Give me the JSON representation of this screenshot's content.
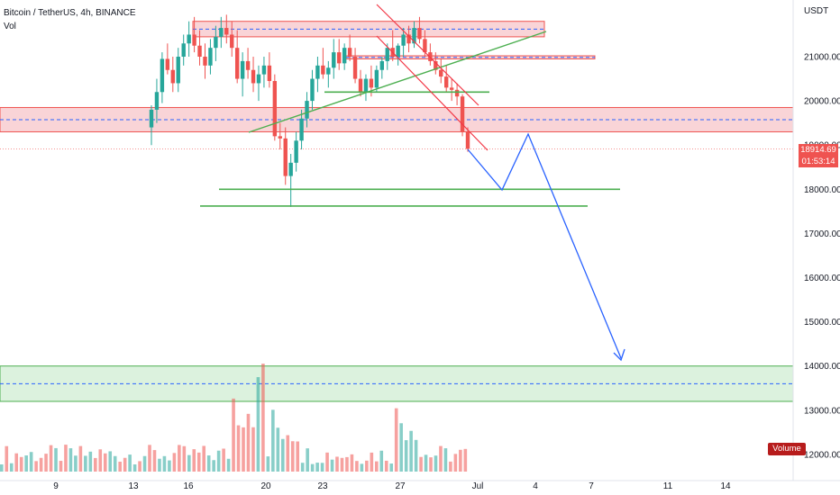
{
  "header": {
    "symbol_line": "Bitcoin / TetherUS, 4h, BINANCE",
    "volume_label": "Vol"
  },
  "price_tag": {
    "price": "18914.69",
    "countdown": "01:53:14"
  },
  "volume_badge": "Volume",
  "colors": {
    "up": "#26a69a",
    "down": "#ef5350",
    "zone_red_fill": "#f7c5c9",
    "zone_green_fill": "#d6f0d8",
    "trend_green": "#4caf50",
    "trend_red": "#f23645",
    "projection_blue": "#2962ff",
    "dashed_blue": "#2962ff"
  },
  "chart_data": {
    "type": "candlestick",
    "y_axis": {
      "unit": "USDT",
      "ticks": [
        "21000.00",
        "20000.00",
        "19000.00",
        "18000.00",
        "17000.00",
        "16000.00",
        "15000.00",
        "14000.00",
        "13000.00",
        "12000.00"
      ],
      "tick_values": [
        21000,
        20000,
        19000,
        18000,
        17000,
        16000,
        15000,
        14000,
        13000,
        12000
      ]
    },
    "x_axis": {
      "ticks": [
        "9",
        "13",
        "16",
        "20",
        "23",
        "27",
        "Jul",
        "4",
        "7",
        "11",
        "14"
      ]
    },
    "last_price": 18914.69,
    "zones": [
      {
        "kind": "resistance",
        "y_low": 21450,
        "y_high": 21800,
        "x_start": "15",
        "x_end": "3"
      },
      {
        "kind": "resistance",
        "y_low": 21920,
        "y_high": 21000,
        "x_start": "22.5",
        "x_end": "Jul 5.5"
      },
      {
        "kind": "resistance",
        "y_low": 19300,
        "y_high": 19850,
        "x_start": "6",
        "x_end": "16"
      },
      {
        "kind": "target",
        "y_low": 13200,
        "y_high": 14000,
        "x_start": "6",
        "x_end": "16"
      }
    ],
    "support_lines": [
      {
        "y": 18000,
        "x_start": "17",
        "x_end": "Jul 9"
      },
      {
        "y": 17620,
        "x_start": "16.5",
        "x_end": "Jul 8"
      },
      {
        "y": 20200,
        "x_start": "22.5",
        "x_end": "29"
      }
    ],
    "projection_path": [
      {
        "x": "Jun 30",
        "y": 18850
      },
      {
        "x": "Jul 2.5",
        "y": 18000
      },
      {
        "x": "Jul 3.8",
        "y": 19250
      },
      {
        "x": "Jul 8.7",
        "y": 14050
      }
    ],
    "candles": [
      [
        19400,
        19900,
        19000,
        19800
      ],
      [
        19800,
        20500,
        19500,
        20200
      ],
      [
        20200,
        21100,
        19950,
        20950
      ],
      [
        20950,
        21300,
        20600,
        20700
      ],
      [
        20700,
        21000,
        20200,
        20400
      ],
      [
        20400,
        21200,
        20200,
        21000
      ],
      [
        21000,
        21500,
        20800,
        21300
      ],
      [
        21300,
        21800,
        21000,
        21500
      ],
      [
        21500,
        21900,
        21100,
        21250
      ],
      [
        21250,
        21600,
        20800,
        21000
      ],
      [
        21000,
        21300,
        20500,
        20800
      ],
      [
        20800,
        21400,
        20600,
        21200
      ],
      [
        21200,
        21700,
        20900,
        21450
      ],
      [
        21450,
        21900,
        21200,
        21650
      ],
      [
        21650,
        21950,
        21300,
        21500
      ],
      [
        21500,
        21800,
        21000,
        21200
      ],
      [
        21200,
        21600,
        20400,
        20500
      ],
      [
        20500,
        21100,
        20100,
        20900
      ],
      [
        20900,
        21200,
        20500,
        20700
      ],
      [
        20700,
        21000,
        20200,
        20400
      ],
      [
        20400,
        20800,
        20000,
        20600
      ],
      [
        20600,
        21000,
        20300,
        20800
      ],
      [
        20800,
        21100,
        20300,
        20450
      ],
      [
        20450,
        20600,
        19100,
        19200
      ],
      [
        19200,
        19500,
        18900,
        19150
      ],
      [
        19150,
        19400,
        18100,
        18300
      ],
      [
        18300,
        18800,
        17600,
        18600
      ],
      [
        18600,
        19300,
        18400,
        19100
      ],
      [
        19100,
        19800,
        18900,
        19600
      ],
      [
        19600,
        20200,
        19400,
        20000
      ],
      [
        20000,
        20700,
        19800,
        20500
      ],
      [
        20500,
        21000,
        20200,
        20800
      ],
      [
        20800,
        21200,
        20500,
        20600
      ],
      [
        20600,
        20900,
        20300,
        20750
      ],
      [
        20750,
        21400,
        20500,
        21100
      ],
      [
        21100,
        21400,
        20700,
        20850
      ],
      [
        20850,
        21300,
        20700,
        21200
      ],
      [
        21200,
        21500,
        20900,
        21000
      ],
      [
        21000,
        21200,
        20400,
        20500
      ],
      [
        20500,
        20700,
        20100,
        20200
      ],
      [
        20200,
        20600,
        20000,
        20500
      ],
      [
        20500,
        20800,
        20100,
        20300
      ],
      [
        20300,
        20800,
        20200,
        20700
      ],
      [
        20700,
        21000,
        20500,
        20900
      ],
      [
        20900,
        21300,
        20700,
        21200
      ],
      [
        21200,
        21600,
        20900,
        21000
      ],
      [
        21000,
        21300,
        20800,
        21250
      ],
      [
        21250,
        21650,
        21000,
        21500
      ],
      [
        21500,
        21700,
        21100,
        21300
      ],
      [
        21300,
        21800,
        21200,
        21650
      ],
      [
        21650,
        21900,
        21300,
        21400
      ],
      [
        21400,
        21600,
        21000,
        21100
      ],
      [
        21100,
        21300,
        20800,
        20900
      ],
      [
        20900,
        21100,
        20600,
        20700
      ],
      [
        20700,
        20950,
        20400,
        20550
      ],
      [
        20550,
        20800,
        20200,
        20300
      ],
      [
        20300,
        20500,
        20000,
        20250
      ],
      [
        20250,
        20400,
        19900,
        20100
      ],
      [
        20100,
        20150,
        19200,
        19300
      ],
      [
        19300,
        19400,
        18850,
        18915
      ]
    ],
    "volume_note": "volume histogram bars colored by candle direction"
  }
}
